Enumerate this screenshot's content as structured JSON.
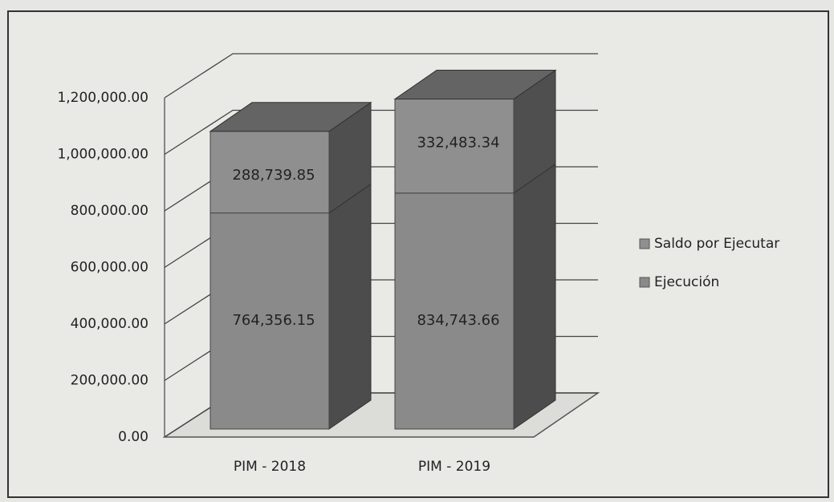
{
  "chart_data": {
    "type": "bar3d_stacked",
    "categories": [
      "PIM - 2018",
      "PIM - 2019"
    ],
    "series": [
      {
        "name": "Ejecución",
        "color": "#8a8a8a",
        "values": [
          764356.15,
          834743.66
        ],
        "value_labels": [
          "764,356.15",
          "834,743.66"
        ]
      },
      {
        "name": "Saldo por Ejecutar",
        "color": "#8f8f8f",
        "values": [
          288739.85,
          332483.34
        ],
        "value_labels": [
          "288,739.85",
          "332,483.34"
        ]
      }
    ],
    "ylim": [
      0,
      1200000
    ],
    "yticks": [
      {
        "value": 0,
        "label": "0.00"
      },
      {
        "value": 200000,
        "label": "200,000.00"
      },
      {
        "value": 400000,
        "label": "400,000.00"
      },
      {
        "value": 600000,
        "label": "600,000.00"
      },
      {
        "value": 800000,
        "label": "800,000.00"
      },
      {
        "value": 1000000,
        "label": "1,000,000.00"
      },
      {
        "value": 1200000,
        "label": "1,200,000.00"
      }
    ],
    "grid": true,
    "legend": "right"
  }
}
